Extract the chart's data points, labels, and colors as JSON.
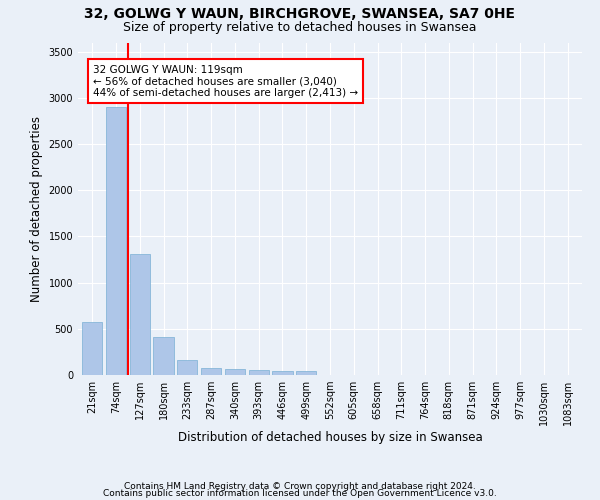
{
  "title1": "32, GOLWG Y WAUN, BIRCHGROVE, SWANSEA, SA7 0HE",
  "title2": "Size of property relative to detached houses in Swansea",
  "xlabel": "Distribution of detached houses by size in Swansea",
  "ylabel": "Number of detached properties",
  "categories": [
    "21sqm",
    "74sqm",
    "127sqm",
    "180sqm",
    "233sqm",
    "287sqm",
    "340sqm",
    "393sqm",
    "446sqm",
    "499sqm",
    "552sqm",
    "605sqm",
    "658sqm",
    "711sqm",
    "764sqm",
    "818sqm",
    "871sqm",
    "924sqm",
    "977sqm",
    "1030sqm",
    "1083sqm"
  ],
  "values": [
    570,
    2900,
    1310,
    415,
    160,
    80,
    60,
    55,
    45,
    45,
    0,
    0,
    0,
    0,
    0,
    0,
    0,
    0,
    0,
    0,
    0
  ],
  "bar_color": "#aec6e8",
  "bar_edge_color": "#7aafd4",
  "vline_x": 1.5,
  "vline_color": "red",
  "annotation_text": "32 GOLWG Y WAUN: 119sqm\n← 56% of detached houses are smaller (3,040)\n44% of semi-detached houses are larger (2,413) →",
  "annotation_box_color": "white",
  "annotation_box_edge_color": "red",
  "ylim": [
    0,
    3600
  ],
  "yticks": [
    0,
    500,
    1000,
    1500,
    2000,
    2500,
    3000,
    3500
  ],
  "footer1": "Contains HM Land Registry data © Crown copyright and database right 2024.",
  "footer2": "Contains public sector information licensed under the Open Government Licence v3.0.",
  "bg_color": "#eaf0f8",
  "plot_bg_color": "#eaf0f8",
  "grid_color": "white",
  "title1_fontsize": 10,
  "title2_fontsize": 9,
  "axis_label_fontsize": 8.5,
  "tick_fontsize": 7,
  "footer_fontsize": 6.5,
  "annotation_fontsize": 7.5
}
